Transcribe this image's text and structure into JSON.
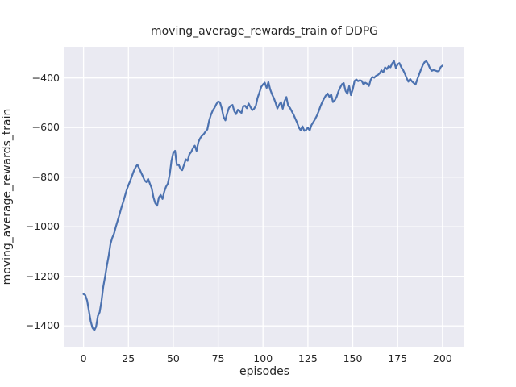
{
  "figure": {
    "background": "#ffffff",
    "text_color": "#262626"
  },
  "chart_data": {
    "type": "line",
    "title": "moving_average_rewards_train of DDPG",
    "xlabel": "episodes",
    "ylabel": "moving_average_rewards_train",
    "plot_background": "#eaeaf2",
    "grid_color": "#ffffff",
    "grid": true,
    "legend": "none",
    "xlim": [
      -10.6,
      212.2
    ],
    "ylim": [
      -1484,
      -274
    ],
    "xticks": [
      0,
      25,
      50,
      75,
      100,
      125,
      150,
      175,
      200
    ],
    "xtick_labels": [
      "0",
      "25",
      "50",
      "75",
      "100",
      "125",
      "150",
      "175",
      "200"
    ],
    "yticks": [
      -400,
      -600,
      -800,
      -1000,
      -1200,
      -1400
    ],
    "ytick_labels": [
      "−400",
      "−600",
      "−800",
      "−1000",
      "−1200",
      "−1400"
    ],
    "series": [
      {
        "name": "moving_average_rewards_train",
        "color": "#4c72b0",
        "line_width": 2.2,
        "x_start": 0,
        "x_step": 1,
        "values": [
          -1272,
          -1276,
          -1298,
          -1340,
          -1382,
          -1408,
          -1418,
          -1403,
          -1360,
          -1345,
          -1300,
          -1242,
          -1202,
          -1158,
          -1118,
          -1070,
          -1045,
          -1028,
          -1000,
          -976,
          -952,
          -926,
          -902,
          -878,
          -853,
          -832,
          -815,
          -795,
          -776,
          -760,
          -750,
          -764,
          -780,
          -796,
          -813,
          -820,
          -807,
          -827,
          -845,
          -882,
          -905,
          -915,
          -882,
          -872,
          -888,
          -858,
          -838,
          -826,
          -789,
          -734,
          -702,
          -694,
          -752,
          -749,
          -766,
          -772,
          -750,
          -728,
          -734,
          -708,
          -698,
          -683,
          -673,
          -694,
          -658,
          -643,
          -633,
          -626,
          -616,
          -607,
          -572,
          -548,
          -531,
          -520,
          -506,
          -495,
          -498,
          -522,
          -556,
          -571,
          -543,
          -521,
          -512,
          -509,
          -534,
          -546,
          -528,
          -535,
          -541,
          -514,
          -512,
          -522,
          -503,
          -517,
          -530,
          -524,
          -512,
          -480,
          -458,
          -436,
          -426,
          -419,
          -440,
          -416,
          -446,
          -466,
          -481,
          -500,
          -523,
          -508,
          -497,
          -524,
          -494,
          -477,
          -512,
          -520,
          -534,
          -548,
          -564,
          -580,
          -600,
          -611,
          -595,
          -613,
          -610,
          -600,
          -612,
          -590,
          -578,
          -566,
          -552,
          -535,
          -514,
          -497,
          -483,
          -471,
          -463,
          -477,
          -467,
          -497,
          -490,
          -476,
          -455,
          -439,
          -425,
          -421,
          -452,
          -464,
          -433,
          -469,
          -446,
          -412,
          -406,
          -413,
          -409,
          -412,
          -426,
          -419,
          -423,
          -432,
          -407,
          -396,
          -399,
          -391,
          -388,
          -381,
          -369,
          -377,
          -357,
          -364,
          -352,
          -357,
          -341,
          -332,
          -360,
          -345,
          -340,
          -356,
          -367,
          -382,
          -400,
          -415,
          -404,
          -414,
          -420,
          -427,
          -404,
          -385,
          -366,
          -348,
          -336,
          -332,
          -344,
          -361,
          -371,
          -368,
          -370,
          -373,
          -372,
          -356,
          -350
        ]
      }
    ]
  }
}
